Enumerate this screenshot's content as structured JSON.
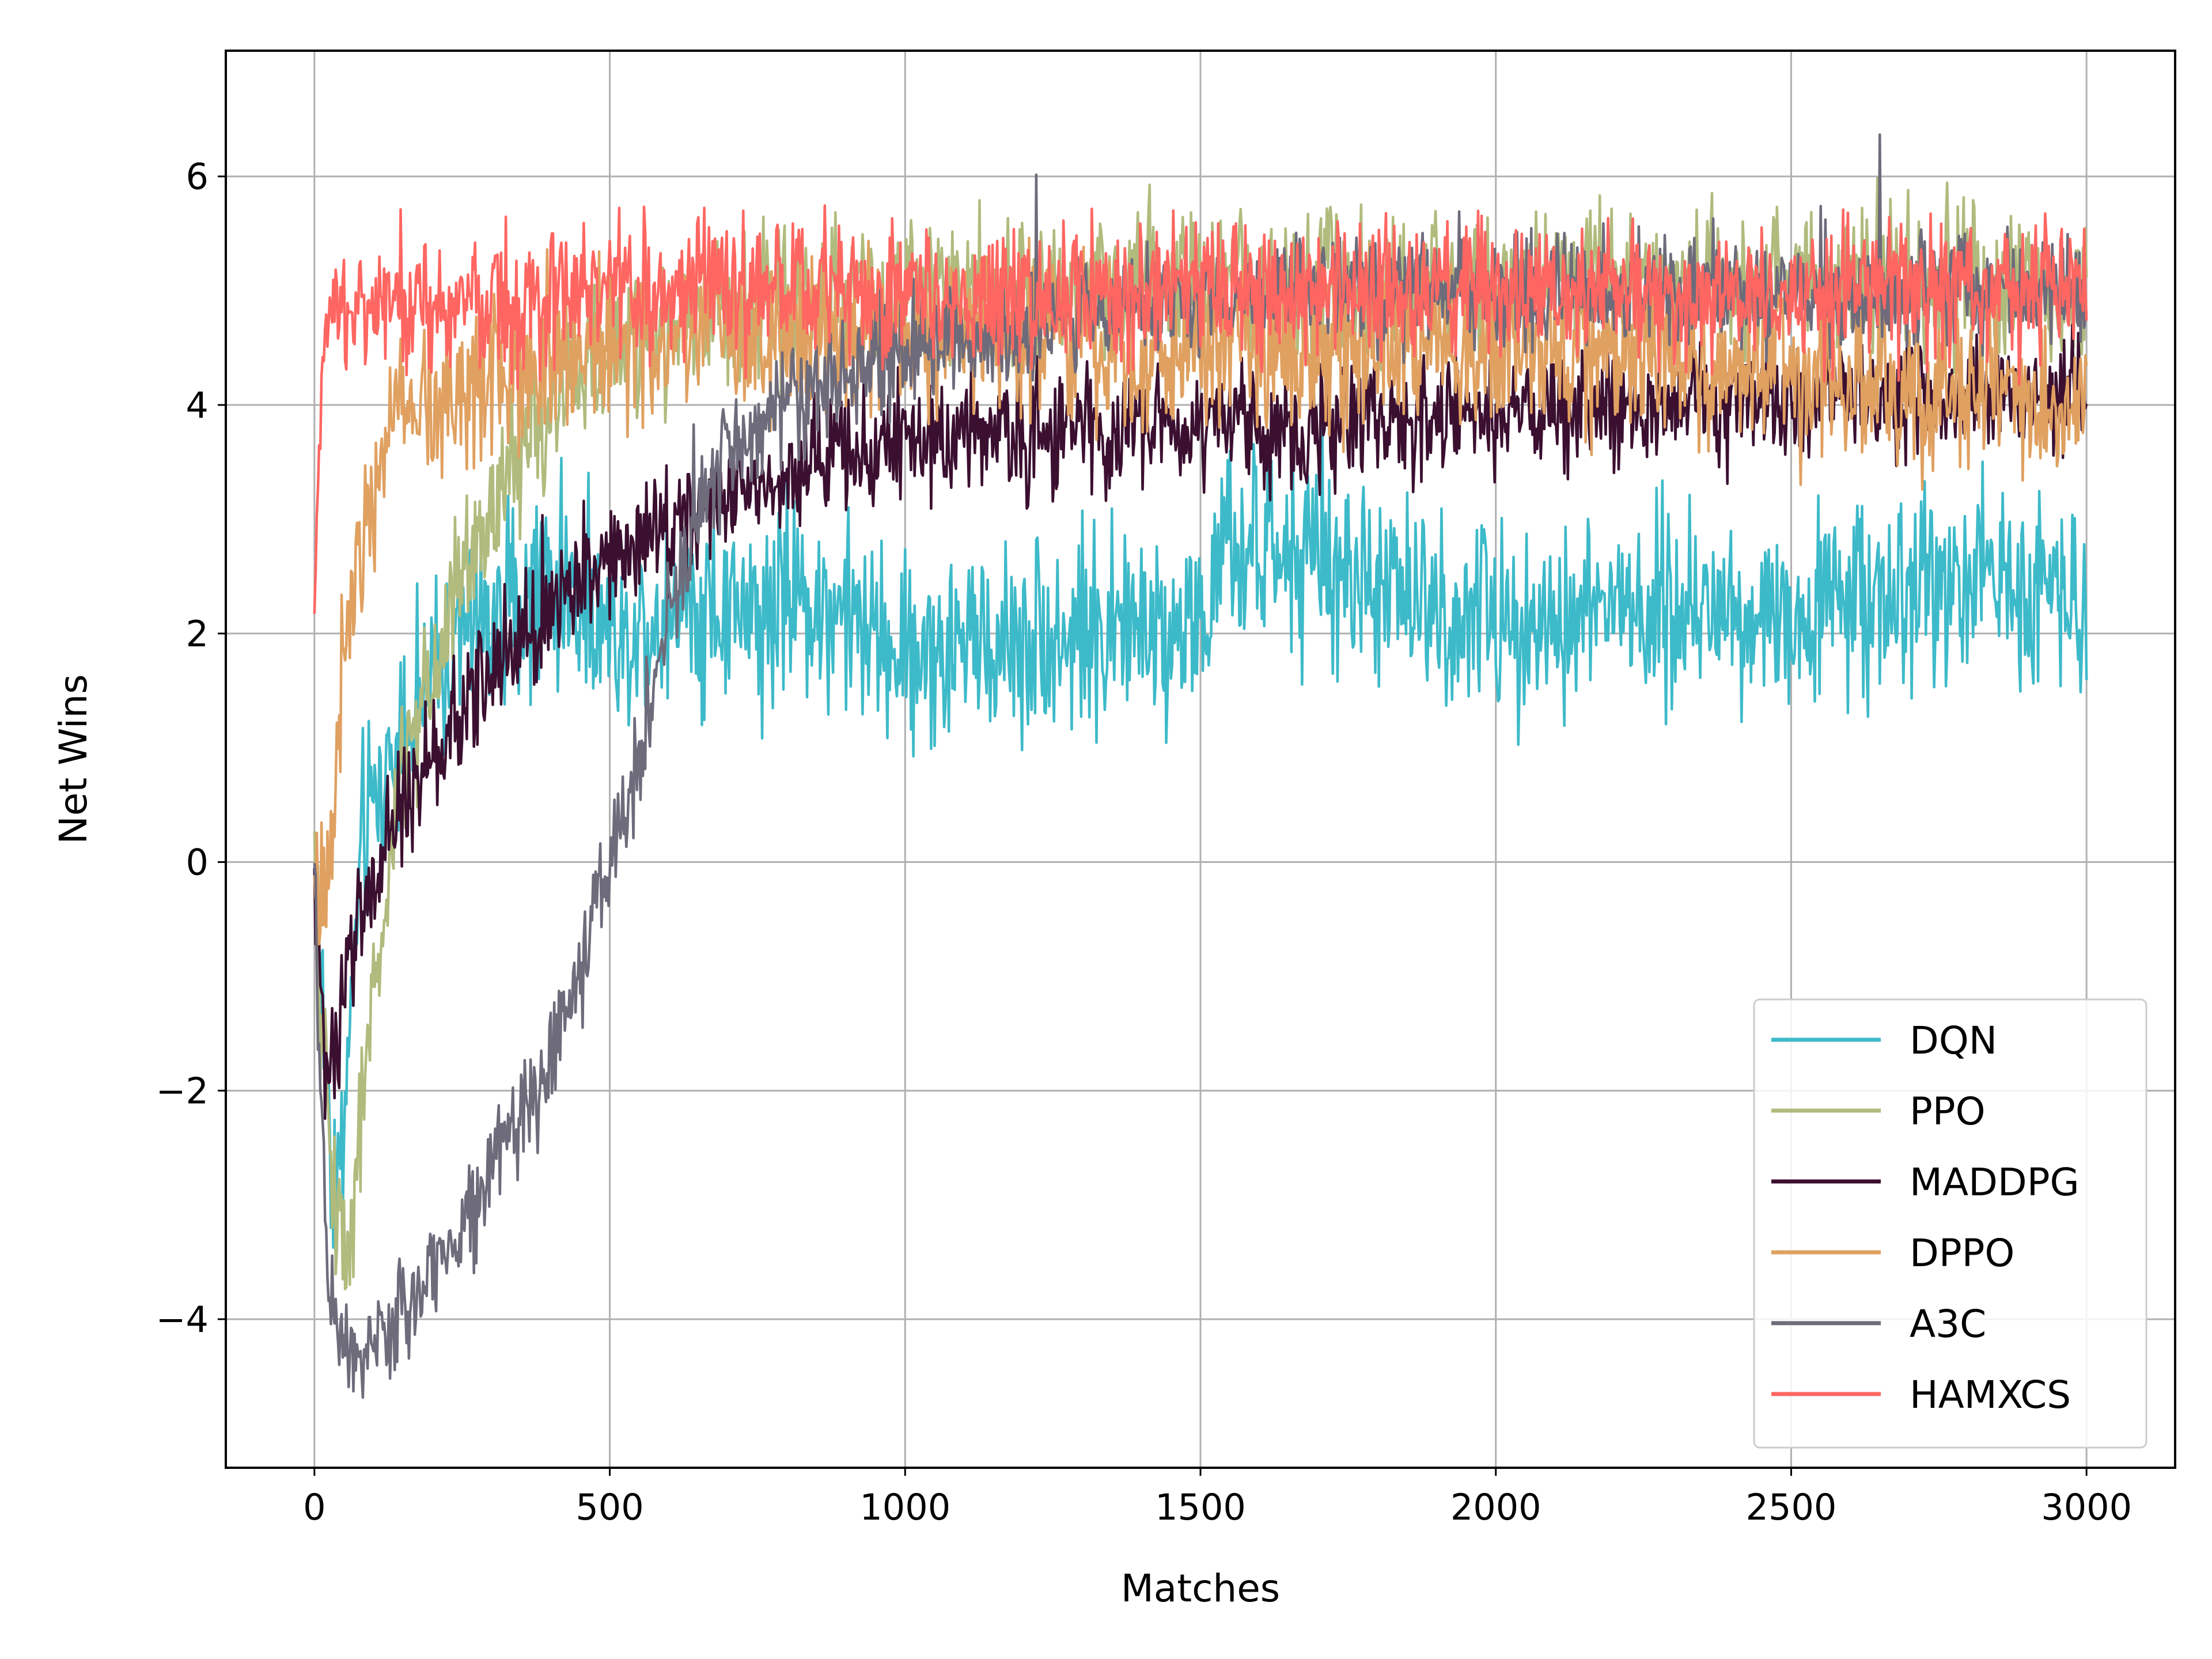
{
  "chart_data": {
    "type": "line",
    "title": "",
    "xlabel": "Matches",
    "ylabel": "Net Wins",
    "xlim": [
      -150,
      3150
    ],
    "ylim": [
      -5.3,
      7.1
    ],
    "x_ticks": [
      0,
      500,
      1000,
      1500,
      2000,
      2500,
      3000
    ],
    "x_tick_labels": [
      "0",
      "500",
      "1000",
      "1500",
      "2000",
      "2500",
      "3000"
    ],
    "y_ticks": [
      -4,
      -2,
      0,
      2,
      4,
      6
    ],
    "y_tick_labels": [
      "−4",
      "−2",
      "0",
      "2",
      "4",
      "6"
    ],
    "grid": true,
    "legend_position": "lower-right",
    "x_range": [
      0,
      3000
    ],
    "series": [
      {
        "name": "DQN",
        "color": "#3dbac9",
        "noise": 0.42,
        "points": [
          [
            0,
            -0.2
          ],
          [
            30,
            -2.6
          ],
          [
            45,
            -2.8
          ],
          [
            80,
            0.2
          ],
          [
            150,
            1.2
          ],
          [
            250,
            2.0
          ],
          [
            400,
            2.5
          ],
          [
            500,
            2.0
          ],
          [
            600,
            2.2
          ],
          [
            750,
            2.2
          ],
          [
            850,
            2.3
          ],
          [
            1000,
            1.8
          ],
          [
            1250,
            2.0
          ],
          [
            1500,
            2.1
          ],
          [
            1550,
            2.7
          ],
          [
            1700,
            2.6
          ],
          [
            1950,
            2.1
          ],
          [
            2200,
            2.2
          ],
          [
            2500,
            2.2
          ],
          [
            2800,
            2.5
          ],
          [
            3000,
            2.4
          ]
        ]
      },
      {
        "name": "PPO",
        "color": "#b0bb7d",
        "noise": 0.32,
        "points": [
          [
            0,
            -0.2
          ],
          [
            30,
            -2.8
          ],
          [
            55,
            -3.4
          ],
          [
            100,
            -1.2
          ],
          [
            150,
            0.8
          ],
          [
            250,
            2.5
          ],
          [
            350,
            3.6
          ],
          [
            450,
            4.3
          ],
          [
            550,
            4.6
          ],
          [
            700,
            4.9
          ],
          [
            1000,
            5.0
          ],
          [
            1500,
            5.1
          ],
          [
            2000,
            5.0
          ],
          [
            2500,
            5.1
          ],
          [
            3000,
            5.0
          ]
        ]
      },
      {
        "name": "MADDPG",
        "color": "#3b0f30",
        "noise": 0.26,
        "points": [
          [
            0,
            -0.2
          ],
          [
            20,
            -2.0
          ],
          [
            60,
            -0.8
          ],
          [
            150,
            0.5
          ],
          [
            300,
            1.7
          ],
          [
            450,
            2.5
          ],
          [
            550,
            2.9
          ],
          [
            700,
            3.2
          ],
          [
            850,
            3.5
          ],
          [
            1000,
            3.7
          ],
          [
            1300,
            3.8
          ],
          [
            1600,
            3.8
          ],
          [
            2000,
            3.9
          ],
          [
            2500,
            4.0
          ],
          [
            3000,
            4.1
          ]
        ]
      },
      {
        "name": "DPPO",
        "color": "#e0a060",
        "noise": 0.36,
        "points": [
          [
            0,
            0.0
          ],
          [
            20,
            -0.3
          ],
          [
            60,
            2.5
          ],
          [
            120,
            3.8
          ],
          [
            250,
            4.2
          ],
          [
            400,
            4.4
          ],
          [
            600,
            4.6
          ],
          [
            1000,
            4.6
          ],
          [
            1500,
            4.5
          ],
          [
            2000,
            4.5
          ],
          [
            2500,
            4.3
          ],
          [
            2750,
            4.1
          ],
          [
            3000,
            4.0
          ]
        ]
      },
      {
        "name": "A3C",
        "color": "#6e6b7b",
        "noise": 0.24,
        "points": [
          [
            0,
            -0.2
          ],
          [
            20,
            -3.5
          ],
          [
            50,
            -4.3
          ],
          [
            120,
            -4.2
          ],
          [
            200,
            -3.6
          ],
          [
            300,
            -2.7
          ],
          [
            400,
            -1.8
          ],
          [
            450,
            -1.0
          ],
          [
            500,
            0.0
          ],
          [
            550,
            0.9
          ],
          [
            600,
            2.1
          ],
          [
            650,
            3.0
          ],
          [
            700,
            3.6
          ],
          [
            800,
            4.0
          ],
          [
            1000,
            4.5
          ],
          [
            1300,
            4.8
          ],
          [
            1700,
            5.0
          ],
          [
            2100,
            5.0
          ],
          [
            2500,
            5.0
          ],
          [
            3000,
            5.0
          ]
        ]
      },
      {
        "name": "HAMXCS",
        "color": "#ff6661",
        "noise": 0.3,
        "points": [
          [
            0,
            2.2
          ],
          [
            15,
            4.3
          ],
          [
            40,
            4.9
          ],
          [
            100,
            4.9
          ],
          [
            300,
            4.9
          ],
          [
            500,
            5.0
          ],
          [
            1000,
            5.0
          ],
          [
            1500,
            5.0
          ],
          [
            2000,
            5.0
          ],
          [
            2500,
            5.0
          ],
          [
            3000,
            5.0
          ]
        ]
      }
    ]
  }
}
